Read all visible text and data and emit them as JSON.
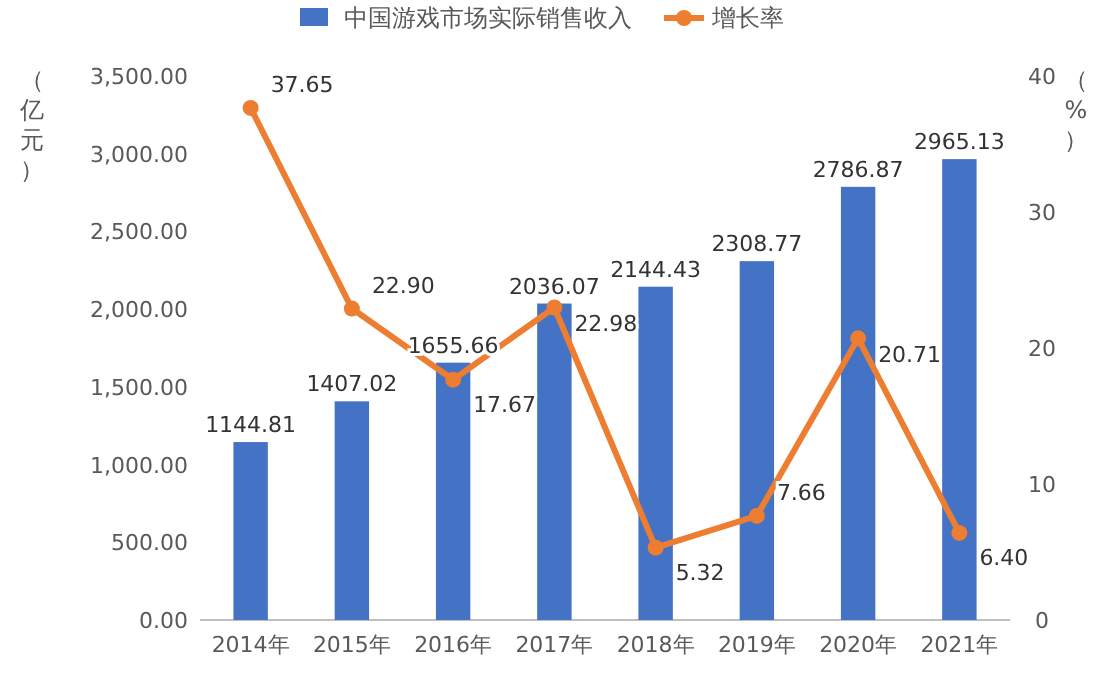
{
  "chart_data": {
    "type": "bar",
    "categories": [
      "2014年",
      "2015年",
      "2016年",
      "2017年",
      "2018年",
      "2019年",
      "2020年",
      "2021年"
    ],
    "ylabel": "（亿元）",
    "y2label": "（%）",
    "legend": "top",
    "data_labels": true,
    "series": [
      {
        "name": "中国游戏市场实际销售收入",
        "color": "#4472c4",
        "values": [
          1144.81,
          1407.02,
          1655.66,
          2036.07,
          2144.43,
          2308.77,
          2786.87,
          2965.13
        ]
      },
      {
        "name": "增长率",
        "type": "line",
        "axis": "y2",
        "color": "#ed7d31",
        "marker": "circle",
        "values": [
          37.65,
          22.9,
          17.67,
          22.98,
          5.32,
          7.66,
          20.71,
          6.4
        ],
        "value_labels": [
          "37.65",
          "22.90",
          "17.67",
          "22.98",
          "5.32",
          "7.66",
          "20.71",
          "6.40"
        ]
      }
    ],
    "ylim": [
      0,
      3500
    ],
    "yticks": [
      {
        "value": 0,
        "label": "0.00"
      },
      {
        "value": 500,
        "label": "500.00"
      },
      {
        "value": 1000,
        "label": "1,000.00"
      },
      {
        "value": 1500,
        "label": "1,500.00"
      },
      {
        "value": 2000,
        "label": "2,000.00"
      },
      {
        "value": 2500,
        "label": "2,500.00"
      },
      {
        "value": 3000,
        "label": "3,000.00"
      },
      {
        "value": 3500,
        "label": "3,500.00"
      }
    ],
    "y2lim": [
      0,
      40
    ],
    "y2ticks": [
      0,
      10,
      20,
      30,
      40
    ],
    "grid": false
  }
}
